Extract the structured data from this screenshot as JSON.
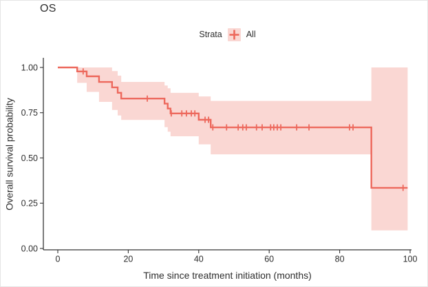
{
  "title": "OS",
  "legend": {
    "title": "Strata",
    "entries": [
      {
        "label": "All"
      }
    ]
  },
  "chart_data": {
    "type": "line",
    "subtype": "kaplan-meier-step",
    "title": "OS",
    "xlabel": "Time since treatment initiation (months)",
    "ylabel": "Overall survival probability",
    "xlim": [
      0,
      100
    ],
    "ylim": [
      0,
      1
    ],
    "grid": "off",
    "legend_position": "top-center",
    "xticks": [
      {
        "v": 0,
        "label": "0"
      },
      {
        "v": 20,
        "label": "20"
      },
      {
        "v": 40,
        "label": "40"
      },
      {
        "v": 60,
        "label": "60"
      },
      {
        "v": 80,
        "label": "80"
      },
      {
        "v": 100,
        "label": "100"
      }
    ],
    "yticks": [
      {
        "v": 0.0,
        "label": "0.00"
      },
      {
        "v": 0.25,
        "label": "0.25"
      },
      {
        "v": 0.5,
        "label": "0.50"
      },
      {
        "v": 0.75,
        "label": "0.75"
      },
      {
        "v": 1.0,
        "label": "1.00"
      }
    ],
    "colors": {
      "line": "#ED685C",
      "ci_fill": "#FAD7D3",
      "axis": "#333333",
      "text": "#2d2d2d"
    },
    "series": [
      {
        "name": "All",
        "end_time": 99.3,
        "steps": [
          {
            "t": 0.0,
            "s": 1.0,
            "lo": 1.0,
            "hi": 1.0
          },
          {
            "t": 5.5,
            "s": 0.978,
            "lo": 0.915,
            "hi": 1.0
          },
          {
            "t": 8.2,
            "s": 0.951,
            "lo": 0.865,
            "hi": 1.0
          },
          {
            "t": 11.7,
            "s": 0.92,
            "lo": 0.81,
            "hi": 1.0
          },
          {
            "t": 15.4,
            "s": 0.89,
            "lo": 0.765,
            "hi": 0.98
          },
          {
            "t": 17.0,
            "s": 0.86,
            "lo": 0.735,
            "hi": 0.955
          },
          {
            "t": 18.0,
            "s": 0.828,
            "lo": 0.71,
            "hi": 0.92
          },
          {
            "t": 30.3,
            "s": 0.8,
            "lo": 0.67,
            "hi": 0.9
          },
          {
            "t": 31.2,
            "s": 0.773,
            "lo": 0.645,
            "hi": 0.885
          },
          {
            "t": 32.0,
            "s": 0.746,
            "lo": 0.62,
            "hi": 0.86
          },
          {
            "t": 40.0,
            "s": 0.711,
            "lo": 0.575,
            "hi": 0.84
          },
          {
            "t": 43.4,
            "s": 0.669,
            "lo": 0.52,
            "hi": 0.815
          },
          {
            "t": 89.0,
            "s": 0.335,
            "lo": 0.1,
            "hi": 1.0
          }
        ],
        "censors": [
          {
            "t": 7.2,
            "s": 0.978
          },
          {
            "t": 25.4,
            "s": 0.828
          },
          {
            "t": 32.2,
            "s": 0.746
          },
          {
            "t": 35.2,
            "s": 0.746
          },
          {
            "t": 36.5,
            "s": 0.746
          },
          {
            "t": 37.9,
            "s": 0.746
          },
          {
            "t": 38.9,
            "s": 0.746
          },
          {
            "t": 41.8,
            "s": 0.711
          },
          {
            "t": 42.8,
            "s": 0.711
          },
          {
            "t": 44.0,
            "s": 0.669
          },
          {
            "t": 47.9,
            "s": 0.669
          },
          {
            "t": 51.2,
            "s": 0.669
          },
          {
            "t": 52.5,
            "s": 0.669
          },
          {
            "t": 53.5,
            "s": 0.669
          },
          {
            "t": 56.4,
            "s": 0.669
          },
          {
            "t": 58.0,
            "s": 0.669
          },
          {
            "t": 60.4,
            "s": 0.669
          },
          {
            "t": 61.3,
            "s": 0.669
          },
          {
            "t": 62.3,
            "s": 0.669
          },
          {
            "t": 63.3,
            "s": 0.669
          },
          {
            "t": 67.8,
            "s": 0.669
          },
          {
            "t": 71.3,
            "s": 0.669
          },
          {
            "t": 82.8,
            "s": 0.669
          },
          {
            "t": 83.8,
            "s": 0.669
          },
          {
            "t": 98.0,
            "s": 0.335
          }
        ]
      }
    ]
  }
}
